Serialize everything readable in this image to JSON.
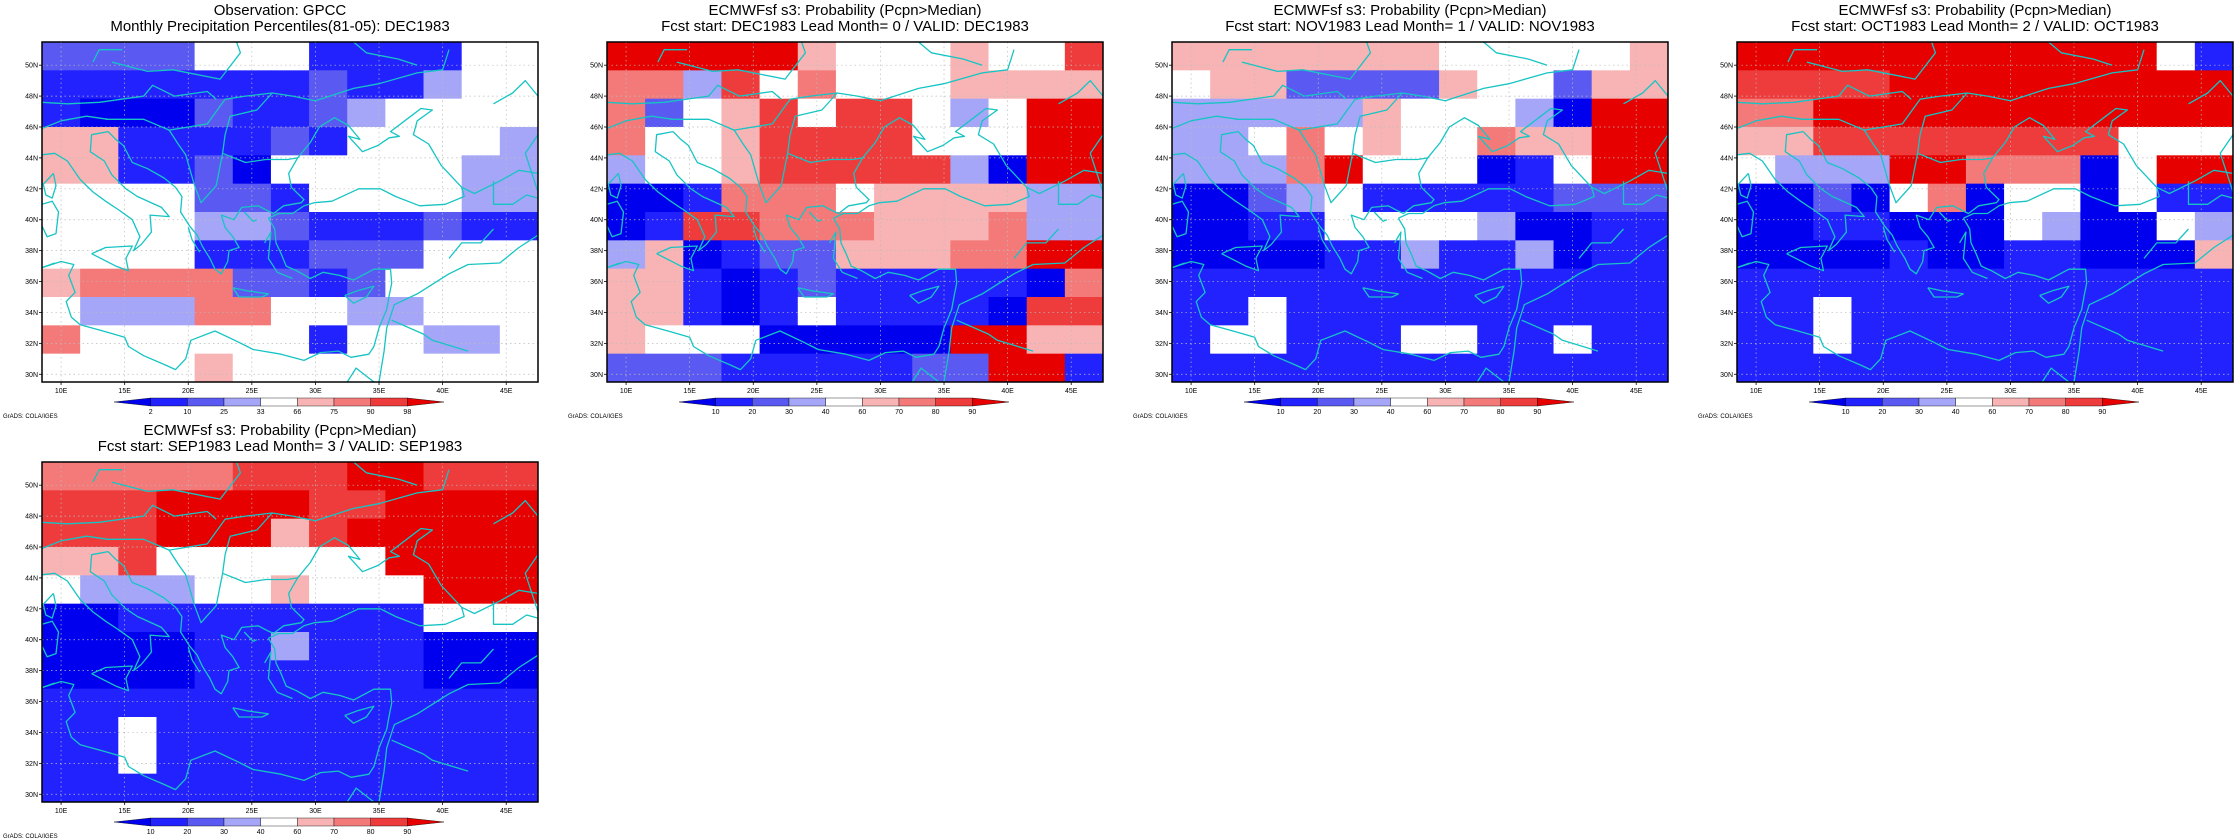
{
  "colors": {
    "blue_10": "#0000ee",
    "blue_20": "#2222ff",
    "blue_30": "#5a5af2",
    "blue_40": "#a6a6f8",
    "neutral": "#ffffff",
    "red_60": "#f8b4b4",
    "red_70": "#f47a7a",
    "red_80": "#ee3c3c",
    "red_90": "#e60000",
    "coast": "#17c4c4",
    "grid": "#bbbbbb"
  },
  "axes": {
    "lon_labels": [
      "10E",
      "15E",
      "20E",
      "25E",
      "30E",
      "35E",
      "40E",
      "45E"
    ],
    "lat_labels": [
      "30N",
      "32N",
      "34N",
      "36N",
      "38N",
      "40N",
      "42N",
      "44N",
      "46N",
      "48N",
      "50N"
    ]
  },
  "credit": "GrADS: COLA/IGES",
  "panels": [
    {
      "title_line1": "Observation: GPCC",
      "title_line2": "Monthly Precipitation Percentiles(81-05): DEC1983",
      "colorbar_labels": [
        "2",
        "10",
        "25",
        "33",
        "66",
        "75",
        "90",
        "98"
      ],
      "grid_rows": [
        "3333000222200",
        "2222222322455",
        "2111322340005",
        "6622223200004",
        "6622310000044",
        "0000332000044",
        "0000443222322",
        "0000222333000",
        "6777733230000",
        "0444775544000",
        "7005500200440",
        "0000600000000"
      ]
    },
    {
      "title_line1": "ECMWFsf s3: Probability (Pcpn>Median)",
      "title_line2": "Fcst start: DEC1983  Lead Month= 0 / VALID: DEC1983",
      "colorbar_labels": [
        "10",
        "20",
        "30",
        "40",
        "60",
        "70",
        "80",
        "90"
      ],
      "grid_rows": [
        "9999960006008",
        "7748070006666",
        "7306858804099",
        "7006888800099",
        "4006888884199",
        "1127775666644",
        "1288777666744",
        "4612336667799",
        "6621232222217",
        "6621202222188",
        "6000111119966",
        "3332222233992"
      ]
    },
    {
      "title_line1": "ECMWFsf s3: Probability (Pcpn>Median)",
      "title_line2": "Fcst start: NOV1983  Lead Month= 1 / VALID: NOV1983",
      "colorbar_labels": [
        "10",
        "20",
        "30",
        "40",
        "60",
        "70",
        "80",
        "90"
      ],
      "grid_rows": [
        "6666666000006",
        "0663333600366",
        "4444460004199",
        "4407060076699",
        "4447900012099",
        "1134022222333",
        "1122000041122",
        "1111224224122",
        "2222222222222",
        "2202222222222",
        "2002220022022",
        "2222222222222"
      ]
    },
    {
      "title_line1": "ECMWFsf s3: Probability (Pcpn>Median)",
      "title_line2": "Fcst start: OCT1983  Lead Month= 2 / VALID: OCT1983",
      "colorbar_labels": [
        "10",
        "20",
        "30",
        "40",
        "60",
        "70",
        "80",
        "90"
      ],
      "grid_rows": [
        "9999999999902",
        "8888999999999",
        "7799999999999",
        "6688888888000",
        "0444997771099",
        "1131071001022",
        "1122111041104",
        "1111211221116",
        "2222222222222",
        "2202222222222",
        "2202222222222",
        "2222222222222"
      ]
    },
    {
      "title_line1": "ECMWFsf s3: Probability (Pcpn>Median)",
      "title_line2": "Fcst start: SEP1983  Lead Month= 3 / VALID: SEP1983",
      "colorbar_labels": [
        "10",
        "20",
        "30",
        "40",
        "60",
        "70",
        "80",
        "90"
      ],
      "grid_rows": [
        "7777788899888",
        "8889999889999",
        "8889996899999",
        "6680000009999",
        "0444006000999",
        "1122222222000",
        "1111224222111",
        "1111222222111",
        "2222222222222",
        "2202222222222",
        "2202222222222",
        "2222222222222"
      ]
    }
  ]
}
